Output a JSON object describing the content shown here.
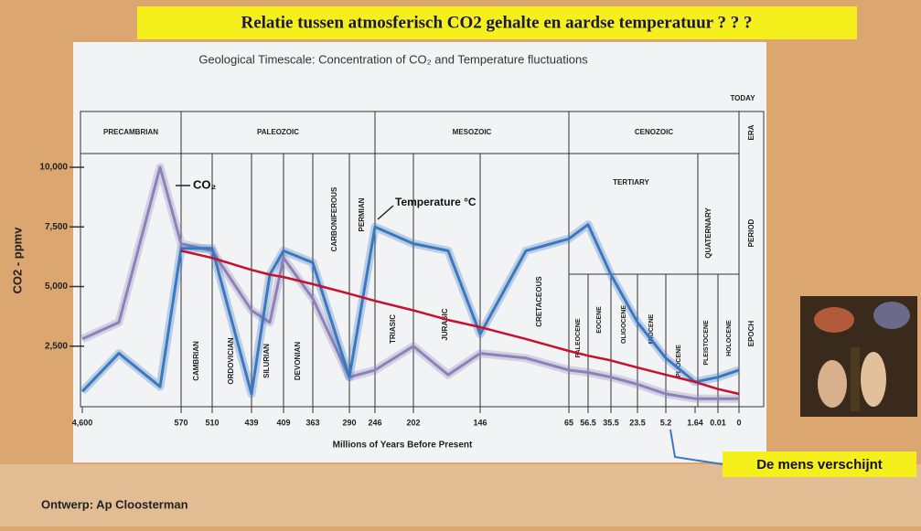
{
  "slide": {
    "title": "Relatie tussen atmosferisch CO2 gehalte en aardse temperatuur ? ? ?",
    "callout": "De mens verschijnt",
    "footer": "Ontwerp: Ap Cloosterman"
  },
  "chart_data": {
    "type": "line",
    "title": "Geological Timescale: Concentration of CO₂ and Temperature fluctuations",
    "x_label": "Millions of Years Before Present",
    "y_label": "CO2 - ppmv",
    "today_label": "TODAY",
    "band_labels": [
      "ERA",
      "PERIOD",
      "EPOCH"
    ],
    "eras": [
      "PRECAMBRIAN",
      "PALEOZOIC",
      "MESOZOIC",
      "CENOZOIC"
    ],
    "periods": [
      "CAMBRIAN",
      "ORDOVICIAN",
      "SILURIAN",
      "DEVONIAN",
      "CARBONIFEROUS",
      "PERMIAN",
      "TRIASIC",
      "JURASIC",
      "CRETACEOUS",
      "TERTIARY",
      "QUATERNARY"
    ],
    "epochs": [
      "PALEOCENE",
      "EOCENE",
      "OLIGOCENE",
      "MIOCENE",
      "PLIOCENE",
      "PLEISTOCENE",
      "HOLOCENE"
    ],
    "categories": [
      "4,600",
      null,
      null,
      "570",
      "510",
      "439",
      null,
      "409",
      "363",
      "290",
      "246",
      "202",
      null,
      "146",
      null,
      "65",
      "56.5",
      "35.5",
      "23.5",
      "5.2",
      "1.64",
      "0.01",
      "0"
    ],
    "series": [
      {
        "name": "CO₂",
        "color": "#8c82b8",
        "values": [
          2800,
          3500,
          10000,
          6800,
          6500,
          4000,
          3500,
          6200,
          4500,
          1200,
          1500,
          2500,
          1300,
          2200,
          2000,
          1500,
          1400,
          1200,
          900,
          500,
          300,
          300,
          300
        ]
      },
      {
        "name": "Temperature °C",
        "color": "#3a78c0",
        "values": [
          600,
          2200,
          800,
          6600,
          6600,
          500,
          5500,
          6500,
          6000,
          1200,
          7500,
          6800,
          6500,
          3000,
          6500,
          7000,
          7600,
          5500,
          3500,
          2000,
          1000,
          1200,
          1500
        ]
      },
      {
        "color": "#c8102e",
        "values": [
          null,
          null,
          null,
          6500,
          6200,
          5700,
          5500,
          5400,
          5100,
          4700,
          4400,
          4000,
          3600,
          3300,
          2800,
          2300,
          2100,
          1900,
          1600,
          1300,
          1000,
          700,
          500
        ]
      }
    ],
    "ylim": [
      0,
      10500
    ],
    "yticks": [
      {
        "value": 2500,
        "label": "2,500"
      },
      {
        "value": 5000,
        "label": "5,000"
      },
      {
        "value": 7500,
        "label": "7,500"
      },
      {
        "value": 10000,
        "label": "10,000"
      }
    ]
  }
}
